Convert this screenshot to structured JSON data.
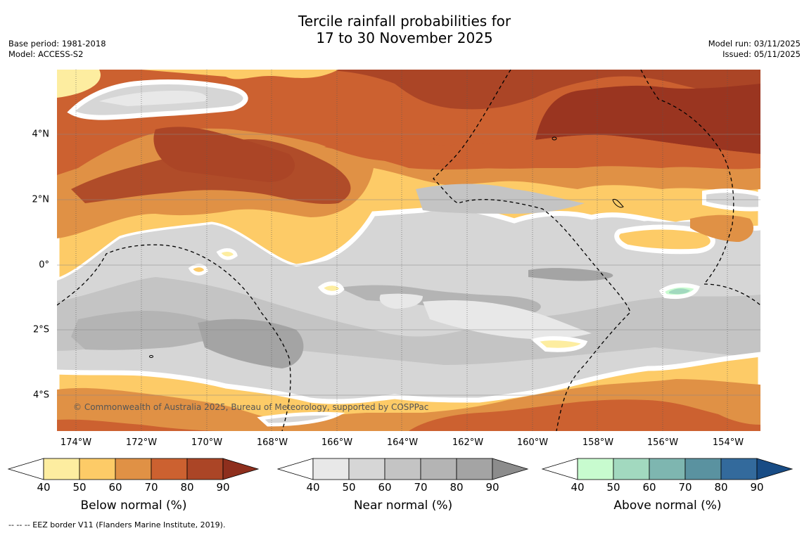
{
  "title": {
    "line1": "Tercile rainfall probabilities for",
    "line2": "17 to 30 November 2025"
  },
  "meta": {
    "base_period": "Base period: 1981-2018",
    "model": "Model: ACCESS-S2",
    "model_run": "Model run: 03/11/2025",
    "issued": "Issued: 05/11/2025"
  },
  "map": {
    "lat_labels": [
      "4°N",
      "2°N",
      "0°",
      "2°S",
      "4°S"
    ],
    "lon_labels": [
      "174°W",
      "172°W",
      "170°W",
      "168°W",
      "166°W",
      "164°W",
      "162°W",
      "160°W",
      "158°W",
      "156°W",
      "154°W"
    ],
    "credit": "© Commonwealth of Australia 2025, Bureau of Meteorology, supported by COSPPac"
  },
  "colorbars": [
    {
      "label": "Below normal (%)",
      "ticks": [
        "40",
        "50",
        "60",
        "70",
        "80",
        "90"
      ],
      "colors": [
        "#ffffff",
        "#fdeda0",
        "#fdcb67",
        "#e09145",
        "#cc6130",
        "#ab4526",
        "#8e2f1d"
      ]
    },
    {
      "label": "Near normal (%)",
      "ticks": [
        "40",
        "50",
        "60",
        "70",
        "80",
        "90"
      ],
      "colors": [
        "#ffffff",
        "#e8e8e8",
        "#d6d6d6",
        "#c4c4c4",
        "#b4b4b4",
        "#a4a4a4",
        "#8c8c8c"
      ]
    },
    {
      "label": "Above normal (%)",
      "ticks": [
        "40",
        "50",
        "60",
        "70",
        "80",
        "90"
      ],
      "colors": [
        "#ffffff",
        "#c8fbcf",
        "#a2d9bf",
        "#7eb6b0",
        "#5a92a0",
        "#336a9c",
        "#184c85"
      ]
    }
  ],
  "footnote": "--  --  -- EEZ border V11 (Flanders Marine Institute, 2019)."
}
